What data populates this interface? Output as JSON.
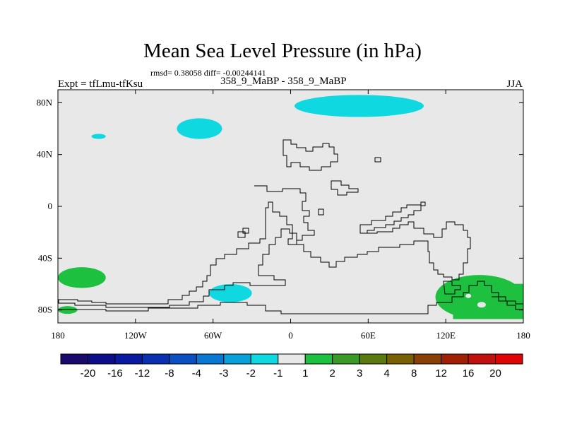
{
  "chart_data": {
    "type": "heatmap",
    "title": "Mean Sea Level Pressure (in hPa)",
    "stats": "rmsd= 0.38058 diff= -0.00244141",
    "left_label": "Expt = tfLmu-tfKsu",
    "center_label": "358_9_MaBP - 358_9_MaBP",
    "right_label": "JJA",
    "xlim": [
      -180,
      180
    ],
    "ylim": [
      -90,
      90
    ],
    "x_ticks": [
      {
        "value": -180,
        "label": "180"
      },
      {
        "value": -120,
        "label": "120W"
      },
      {
        "value": -60,
        "label": "60W"
      },
      {
        "value": 0,
        "label": "0"
      },
      {
        "value": 60,
        "label": "60E"
      },
      {
        "value": 120,
        "label": "120E"
      },
      {
        "value": 180,
        "label": "180"
      }
    ],
    "y_ticks": [
      {
        "value": 80,
        "label": "80N"
      },
      {
        "value": 40,
        "label": "40N"
      },
      {
        "value": 0,
        "label": "0"
      },
      {
        "value": -40,
        "label": "40S"
      },
      {
        "value": -80,
        "label": "80S"
      }
    ],
    "colorbar": {
      "labels": [
        "-20",
        "-16",
        "-12",
        "-8",
        "-4",
        "-3",
        "-2",
        "-1",
        "1",
        "2",
        "3",
        "4",
        "8",
        "12",
        "16",
        "20"
      ],
      "colors": [
        "#1a0a6b",
        "#0d0d8a",
        "#0a1aa0",
        "#0a30b0",
        "#0a50c0",
        "#0a78d0",
        "#0aa0d8",
        "#10d8e0",
        "#e8e8e8",
        "#1ec040",
        "#3a9a28",
        "#5a7a10",
        "#7a6005",
        "#8a4005",
        "#a02005",
        "#c01010",
        "#e00505"
      ]
    },
    "regions": [
      {
        "name": "arctic-negative-anomaly",
        "level": "-2 to -1",
        "lon": [
          3,
          103
        ],
        "lat": [
          69,
          86
        ]
      },
      {
        "name": "north-pacific-negative-anomaly",
        "level": "-2 to -1",
        "lon": [
          -88,
          -53
        ],
        "lat": [
          52,
          68
        ]
      },
      {
        "name": "small-north-pacific-negative-anomaly",
        "level": "-2 to -1",
        "lon": [
          -154,
          -143
        ],
        "lat": [
          52,
          56
        ]
      },
      {
        "name": "south-atlantic-negative-anomaly",
        "level": "-2 to -1",
        "lon": [
          -63,
          -30
        ],
        "lat": [
          -74,
          -60
        ]
      },
      {
        "name": "south-pacific-positive-anomaly",
        "level": "1 to 2",
        "lon": [
          -180,
          -143
        ],
        "lat": [
          -63,
          -47
        ]
      },
      {
        "name": "southern-ocean-positive-anomaly",
        "level": "1 to 2",
        "lon": [
          -180,
          -165
        ],
        "lat": [
          -83,
          -77
        ]
      },
      {
        "name": "southeast-positive-anomaly",
        "level": "1 to 2",
        "lon": [
          112,
          180
        ],
        "lat": [
          -87,
          -53
        ]
      }
    ]
  }
}
